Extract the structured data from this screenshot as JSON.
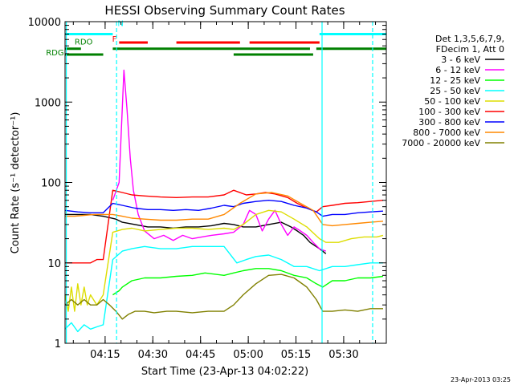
{
  "chart_data": {
    "type": "line",
    "title": "HESSI Observing Summary Count Rates",
    "xlabel": "Start Time (23-Apr-13 04:02:22)",
    "ylabel": "Count Rate (s⁻¹ detector⁻¹)",
    "y_scale": "log",
    "ylim": [
      1,
      10000
    ],
    "xlim_minutes": [
      0,
      101
    ],
    "x_ticks": [
      {
        "label": "04:15",
        "min": 12.6
      },
      {
        "label": "04:30",
        "min": 27.6
      },
      {
        "label": "04:45",
        "min": 42.6
      },
      {
        "label": "05:00",
        "min": 57.6
      },
      {
        "label": "05:15",
        "min": 72.6
      },
      {
        "label": "05:30",
        "min": 87.6
      }
    ],
    "y_ticks": [
      {
        "label": "1",
        "value": 1
      },
      {
        "label": "10",
        "value": 10
      },
      {
        "label": "100",
        "value": 100
      },
      {
        "label": "1000",
        "value": 1000
      },
      {
        "label": "10000",
        "value": 10000
      }
    ],
    "legend_header": [
      "Det 1,3,5,6,7,9,",
      "FDecim 1, Att 0"
    ],
    "legend_position": "right",
    "series": [
      {
        "name": "3 - 6 keV",
        "color": "#000000",
        "points": [
          [
            0,
            40
          ],
          [
            8,
            40
          ],
          [
            12,
            38
          ],
          [
            16,
            35
          ],
          [
            18,
            32
          ],
          [
            22,
            30
          ],
          [
            26,
            28
          ],
          [
            30,
            28
          ],
          [
            34,
            27
          ],
          [
            38,
            28
          ],
          [
            42,
            28
          ],
          [
            46,
            29
          ],
          [
            50,
            31
          ],
          [
            53,
            30
          ],
          [
            56,
            28
          ],
          [
            60,
            28
          ],
          [
            64,
            30
          ],
          [
            68,
            32
          ],
          [
            71,
            28
          ],
          [
            73,
            25
          ],
          [
            75,
            22
          ],
          [
            77,
            18
          ],
          [
            80,
            15
          ],
          [
            82,
            13
          ]
        ]
      },
      {
        "name": "6 - 12 keV",
        "color": "#ff00ff",
        "points": [
          [
            15,
            60
          ],
          [
            17,
            100
          ],
          [
            18.5,
            2500
          ],
          [
            19.5,
            800
          ],
          [
            20.5,
            200
          ],
          [
            21.5,
            80
          ],
          [
            23,
            40
          ],
          [
            25,
            25
          ],
          [
            28,
            20
          ],
          [
            31,
            22
          ],
          [
            34,
            19
          ],
          [
            37,
            22
          ],
          [
            40,
            20
          ],
          [
            43,
            21
          ],
          [
            46,
            22
          ],
          [
            50,
            23
          ],
          [
            53,
            24
          ],
          [
            56,
            30
          ],
          [
            58,
            45
          ],
          [
            60,
            40
          ],
          [
            62,
            25
          ],
          [
            64,
            35
          ],
          [
            66,
            45
          ],
          [
            68,
            30
          ],
          [
            70,
            22
          ],
          [
            72,
            28
          ],
          [
            74,
            25
          ],
          [
            76,
            22
          ],
          [
            78,
            18
          ],
          [
            80,
            15
          ],
          [
            82,
            14
          ]
        ]
      },
      {
        "name": "12 - 25 keV",
        "color": "#00ff00",
        "points": [
          [
            15,
            4
          ],
          [
            17,
            4.5
          ],
          [
            18,
            5
          ],
          [
            21,
            6
          ],
          [
            25,
            6.5
          ],
          [
            30,
            6.5
          ],
          [
            35,
            6.8
          ],
          [
            40,
            7
          ],
          [
            44,
            7.5
          ],
          [
            50,
            7
          ],
          [
            53,
            7.5
          ],
          [
            56,
            8
          ],
          [
            60,
            8.5
          ],
          [
            64,
            8.5
          ],
          [
            68,
            8
          ],
          [
            72,
            7
          ],
          [
            76,
            6.5
          ],
          [
            79,
            5.5
          ],
          [
            81,
            5
          ],
          [
            84,
            6
          ],
          [
            88,
            6
          ],
          [
            92,
            6.5
          ],
          [
            96,
            6.5
          ],
          [
            100,
            6.8
          ]
        ]
      },
      {
        "name": "25 - 50 keV",
        "color": "#00ffff",
        "points": [
          [
            0,
            1.5
          ],
          [
            2,
            1.8
          ],
          [
            4,
            1.4
          ],
          [
            6,
            1.7
          ],
          [
            8,
            1.5
          ],
          [
            10,
            1.6
          ],
          [
            12,
            1.7
          ],
          [
            15,
            11
          ],
          [
            18,
            14
          ],
          [
            21,
            15
          ],
          [
            25,
            16
          ],
          [
            30,
            15
          ],
          [
            35,
            15
          ],
          [
            40,
            16
          ],
          [
            45,
            16
          ],
          [
            50,
            16
          ],
          [
            54,
            10
          ],
          [
            57,
            11
          ],
          [
            60,
            12
          ],
          [
            64,
            12.5
          ],
          [
            68,
            11
          ],
          [
            72,
            9
          ],
          [
            76,
            9
          ],
          [
            80,
            8
          ],
          [
            84,
            9
          ],
          [
            88,
            9
          ],
          [
            92,
            9.5
          ],
          [
            96,
            10
          ],
          [
            100,
            10
          ]
        ]
      },
      {
        "name": "50 - 100 keV",
        "color": "#dddd00",
        "points": [
          [
            0,
            4
          ],
          [
            1,
            2.5
          ],
          [
            2,
            5
          ],
          [
            3,
            2.5
          ],
          [
            4,
            5.5
          ],
          [
            5,
            3
          ],
          [
            6,
            5
          ],
          [
            7,
            3
          ],
          [
            8,
            4
          ],
          [
            10,
            3
          ],
          [
            12,
            4
          ],
          [
            15,
            24
          ],
          [
            18,
            26
          ],
          [
            21,
            27
          ],
          [
            25,
            25
          ],
          [
            30,
            26
          ],
          [
            35,
            27
          ],
          [
            40,
            27
          ],
          [
            45,
            26
          ],
          [
            50,
            27
          ],
          [
            53,
            26
          ],
          [
            56,
            30
          ],
          [
            60,
            40
          ],
          [
            64,
            45
          ],
          [
            68,
            43
          ],
          [
            72,
            35
          ],
          [
            76,
            28
          ],
          [
            80,
            20
          ],
          [
            82,
            18
          ],
          [
            86,
            18
          ],
          [
            90,
            20
          ],
          [
            94,
            21
          ],
          [
            98,
            21
          ],
          [
            100,
            22
          ]
        ]
      },
      {
        "name": "100 - 300 keV",
        "color": "#ff0000",
        "points": [
          [
            0,
            10
          ],
          [
            3,
            10
          ],
          [
            6,
            10
          ],
          [
            8,
            10
          ],
          [
            10,
            11
          ],
          [
            12,
            11
          ],
          [
            15,
            80
          ],
          [
            18,
            75
          ],
          [
            21,
            70
          ],
          [
            25,
            68
          ],
          [
            30,
            66
          ],
          [
            35,
            65
          ],
          [
            40,
            66
          ],
          [
            45,
            66
          ],
          [
            50,
            70
          ],
          [
            53,
            80
          ],
          [
            57,
            70
          ],
          [
            60,
            72
          ],
          [
            63,
            75
          ],
          [
            66,
            72
          ],
          [
            70,
            65
          ],
          [
            73,
            55
          ],
          [
            76,
            48
          ],
          [
            79,
            43
          ],
          [
            81,
            50
          ],
          [
            84,
            52
          ],
          [
            88,
            55
          ],
          [
            92,
            56
          ],
          [
            96,
            58
          ],
          [
            100,
            60
          ]
        ]
      },
      {
        "name": "300 - 800 keV",
        "color": "#0000ff",
        "points": [
          [
            0,
            45
          ],
          [
            4,
            43
          ],
          [
            8,
            42
          ],
          [
            12,
            42
          ],
          [
            15,
            55
          ],
          [
            18,
            52
          ],
          [
            22,
            48
          ],
          [
            26,
            46
          ],
          [
            30,
            46
          ],
          [
            34,
            45
          ],
          [
            38,
            46
          ],
          [
            42,
            45
          ],
          [
            46,
            48
          ],
          [
            50,
            52
          ],
          [
            53,
            50
          ],
          [
            56,
            55
          ],
          [
            60,
            58
          ],
          [
            64,
            60
          ],
          [
            68,
            58
          ],
          [
            72,
            52
          ],
          [
            76,
            48
          ],
          [
            79,
            43
          ],
          [
            81,
            38
          ],
          [
            84,
            40
          ],
          [
            88,
            40
          ],
          [
            92,
            42
          ],
          [
            96,
            43
          ],
          [
            100,
            44
          ]
        ]
      },
      {
        "name": "800 - 7000 keV",
        "color": "#ff8800",
        "points": [
          [
            0,
            38
          ],
          [
            3,
            38
          ],
          [
            6,
            39
          ],
          [
            9,
            40
          ],
          [
            12,
            40
          ],
          [
            15,
            40
          ],
          [
            18,
            38
          ],
          [
            21,
            36
          ],
          [
            25,
            35
          ],
          [
            30,
            34
          ],
          [
            35,
            34
          ],
          [
            40,
            35
          ],
          [
            45,
            35
          ],
          [
            50,
            40
          ],
          [
            55,
            55
          ],
          [
            60,
            72
          ],
          [
            65,
            75
          ],
          [
            70,
            68
          ],
          [
            74,
            55
          ],
          [
            78,
            45
          ],
          [
            81,
            30
          ],
          [
            84,
            29
          ],
          [
            88,
            30
          ],
          [
            92,
            31
          ],
          [
            96,
            32
          ],
          [
            100,
            33
          ]
        ]
      },
      {
        "name": "7000 - 20000 keV",
        "color": "#808000",
        "points": [
          [
            0,
            3
          ],
          [
            2,
            3.5
          ],
          [
            4,
            3
          ],
          [
            6,
            3.5
          ],
          [
            8,
            3
          ],
          [
            10,
            3
          ],
          [
            12,
            3.5
          ],
          [
            14,
            3
          ],
          [
            16,
            2.5
          ],
          [
            18,
            2
          ],
          [
            20,
            2.3
          ],
          [
            22,
            2.5
          ],
          [
            25,
            2.5
          ],
          [
            28,
            2.4
          ],
          [
            32,
            2.5
          ],
          [
            35,
            2.5
          ],
          [
            40,
            2.4
          ],
          [
            45,
            2.5
          ],
          [
            50,
            2.5
          ],
          [
            53,
            3
          ],
          [
            56,
            4
          ],
          [
            60,
            5.5
          ],
          [
            64,
            7
          ],
          [
            68,
            7.2
          ],
          [
            72,
            6.5
          ],
          [
            76,
            5
          ],
          [
            79,
            3.5
          ],
          [
            81,
            2.5
          ],
          [
            84,
            2.5
          ],
          [
            88,
            2.6
          ],
          [
            92,
            2.5
          ],
          [
            96,
            2.7
          ],
          [
            100,
            2.7
          ]
        ]
      }
    ],
    "flag_bars": [
      {
        "color": "#00ffff",
        "level": 7000,
        "segments": [
          [
            0,
            15
          ],
          [
            80,
            101
          ]
        ]
      },
      {
        "color": "#ff0000",
        "level": 5500,
        "segments": [
          [
            17,
            26
          ],
          [
            35,
            55
          ],
          [
            58,
            80
          ]
        ]
      },
      {
        "color": "#008000",
        "level": 4600,
        "segments": [
          [
            0,
            5
          ],
          [
            15,
            77
          ],
          [
            79,
            101
          ]
        ]
      },
      {
        "color": "#008000",
        "level": 3900,
        "segments": [
          [
            0,
            12
          ],
          [
            53,
            78
          ]
        ]
      }
    ],
    "flag_labels": [
      {
        "text": "N",
        "color": "#00ffff",
        "min": 16.5,
        "level": 8800
      },
      {
        "text": "F",
        "color": "#ff0000",
        "min": 14.8,
        "level": 5600
      },
      {
        "text": "RDO",
        "color": "#008000",
        "min": 3,
        "level": 5200
      },
      {
        "text": "RDG",
        "color": "#008000",
        "min": -6,
        "level": 3800
      }
    ],
    "vlines": [
      {
        "min": 0.4,
        "color": "#00ffff",
        "dash": false
      },
      {
        "min": 16.2,
        "color": "#00ffff",
        "dash": true
      },
      {
        "min": 80.8,
        "color": "#00ffff",
        "dash": false
      },
      {
        "min": 96.7,
        "color": "#00ffff",
        "dash": true
      }
    ]
  },
  "footer_timestamp": "23-Apr-2013 03:25"
}
